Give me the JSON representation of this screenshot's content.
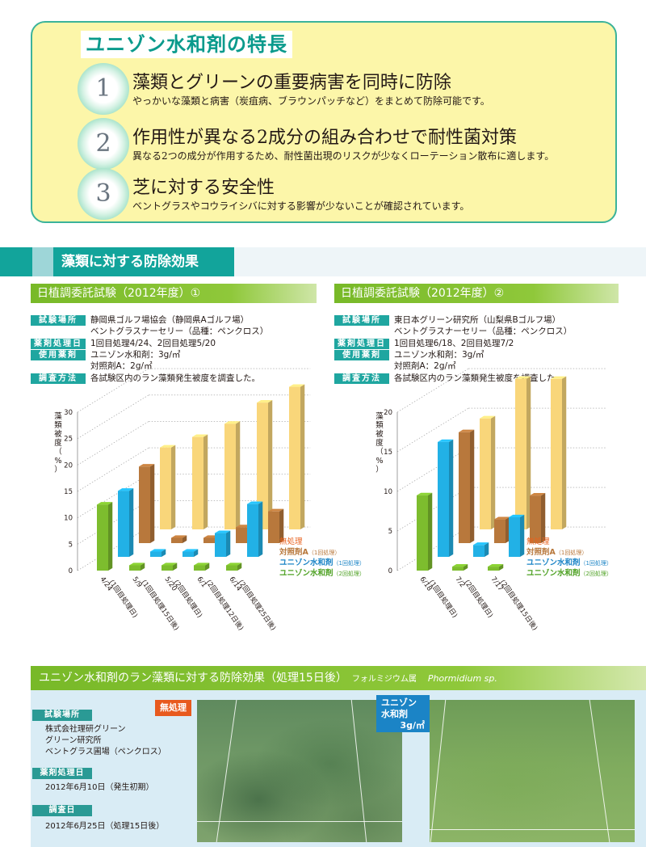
{
  "features": {
    "title": "ユニゾン水和剤の特長",
    "items": [
      {
        "num": "1",
        "head": "藻類とグリーンの重要病害を同時に防除",
        "sub": "やっかいな藻類と病害（炭疽病、ブラウンパッチなど）をまとめて防除可能です。"
      },
      {
        "num": "2",
        "head": "作用性が異なる2成分の組み合わせで耐性菌対策",
        "sub": "異なる2つの成分が作用するため、耐性菌出現のリスクが少なくローテーション散布に適します。"
      },
      {
        "num": "3",
        "head": "芝に対する安全性",
        "sub": "ベントグラスやコウライシバに対する影響が少ないことが確認されています。"
      }
    ]
  },
  "section_title": "藻類に対する防除効果",
  "trials": [
    {
      "title": "日植調委託試験（2012年度）①",
      "rows": [
        {
          "tag": "試験場所",
          "lines": [
            "静岡県ゴルフ場協会（静岡県Aゴルフ場）",
            "ベントグラスナーセリー（品種：ペンクロス）"
          ]
        },
        {
          "tag": "薬剤処理日",
          "lines": [
            "1回目処理4/24、2回目処理5/20"
          ]
        },
        {
          "tag": "使用薬剤",
          "lines": [
            "ユニゾン水和剤：3g/㎡",
            "対照剤A：2g/㎡"
          ]
        },
        {
          "tag": "調査方法",
          "lines": [
            "各試験区内のラン藻類発生被度を調査した。"
          ]
        }
      ]
    },
    {
      "title": "日植調委託試験（2012年度）②",
      "rows": [
        {
          "tag": "試験場所",
          "lines": [
            "東日本グリーン研究所（山梨県Bゴルフ場）",
            "ベントグラスナーセリー（品種：ペンクロス）"
          ]
        },
        {
          "tag": "薬剤処理日",
          "lines": [
            "1回目処理6/18、2回目処理7/2"
          ]
        },
        {
          "tag": "使用薬剤",
          "lines": [
            "ユニゾン水和剤：3g/㎡",
            "対照剤A：2g/㎡"
          ]
        },
        {
          "tag": "調査方法",
          "lines": [
            "各試験区内のラン藻類発生被度を調査した。"
          ]
        }
      ]
    }
  ],
  "chart_data": [
    {
      "type": "bar",
      "ylabel": "藻類被度（%）",
      "ylim": [
        0,
        30
      ],
      "yticks": [
        "0",
        "5",
        "10",
        "15",
        "20",
        "25",
        "30"
      ],
      "categories": [
        "4/24\n(1回目処理日)",
        "5/9\n(1回目処理15日後)",
        "5/20\n(2回目処理日)",
        "6/1\n(2回目処理12日後)",
        "6/14\n(2回目処理25日後)"
      ],
      "series": [
        {
          "name": "無処理",
          "color": "#f9d67a",
          "values": [
            15.5,
            17.5,
            20,
            24,
            27
          ]
        },
        {
          "name": "対照剤A",
          "name_note": "（1回処理）",
          "color": "#b8783c",
          "values": [
            14.5,
            1,
            1,
            3,
            6
          ]
        },
        {
          "name": "ユニゾン水和剤",
          "name_note": "（1回処理）",
          "color": "#22b1e6",
          "values": [
            12.5,
            1,
            1,
            4.5,
            10
          ]
        },
        {
          "name": "ユニゾン水和剤",
          "name_note": "（2回処理）",
          "color": "#7dbd2e",
          "values": [
            12.5,
            1,
            1,
            1,
            1
          ]
        }
      ]
    },
    {
      "type": "bar",
      "ylabel": "藻類被度（%）",
      "ylim": [
        0,
        20
      ],
      "yticks": [
        "0",
        "5",
        "10",
        "15",
        "20"
      ],
      "categories": [
        "6/18\n(1回目処理日)",
        "7/2\n(2回目処理日)",
        "7/17\n(2回目処理15日後)"
      ],
      "series": [
        {
          "name": "無処理",
          "color": "#f9d67a",
          "values": [
            14,
            19,
            19
          ]
        },
        {
          "name": "対照剤A",
          "name_note": "（1回処理）",
          "color": "#b8783c",
          "values": [
            14,
            3,
            6
          ]
        },
        {
          "name": "ユニゾン水和剤",
          "name_note": "（1回処理）",
          "color": "#22b1e6",
          "values": [
            14.5,
            1.5,
            5
          ]
        },
        {
          "name": "ユニゾン水和剤",
          "name_note": "（2回処理）",
          "color": "#7dbd2e",
          "values": [
            9.5,
            0.5,
            0.5
          ]
        }
      ]
    }
  ],
  "photo_section": {
    "title": "ユニゾン水和剤のラン藻類に対する防除効果",
    "title_note": "（処理15日後）",
    "species": "フォルミジウム属",
    "species_latin": "Phormidium sp.",
    "items": [
      {
        "tag": "試験場所",
        "lines": [
          "株式会社理研グリーン",
          "グリーン研究所",
          "ベントグラス圃場（ペンクロス）"
        ]
      },
      {
        "tag": "薬剤処理日",
        "lines": [
          "2012年6月10日（発生初期）"
        ]
      },
      {
        "tag": "調査日",
        "lines": [
          "2012年6月25日（処理15日後）"
        ]
      }
    ],
    "photo_a_label": "無処理",
    "photo_b_label_1": "ユニゾン",
    "photo_b_label_2": "水和剤",
    "photo_b_label_3": "3g/㎡"
  }
}
